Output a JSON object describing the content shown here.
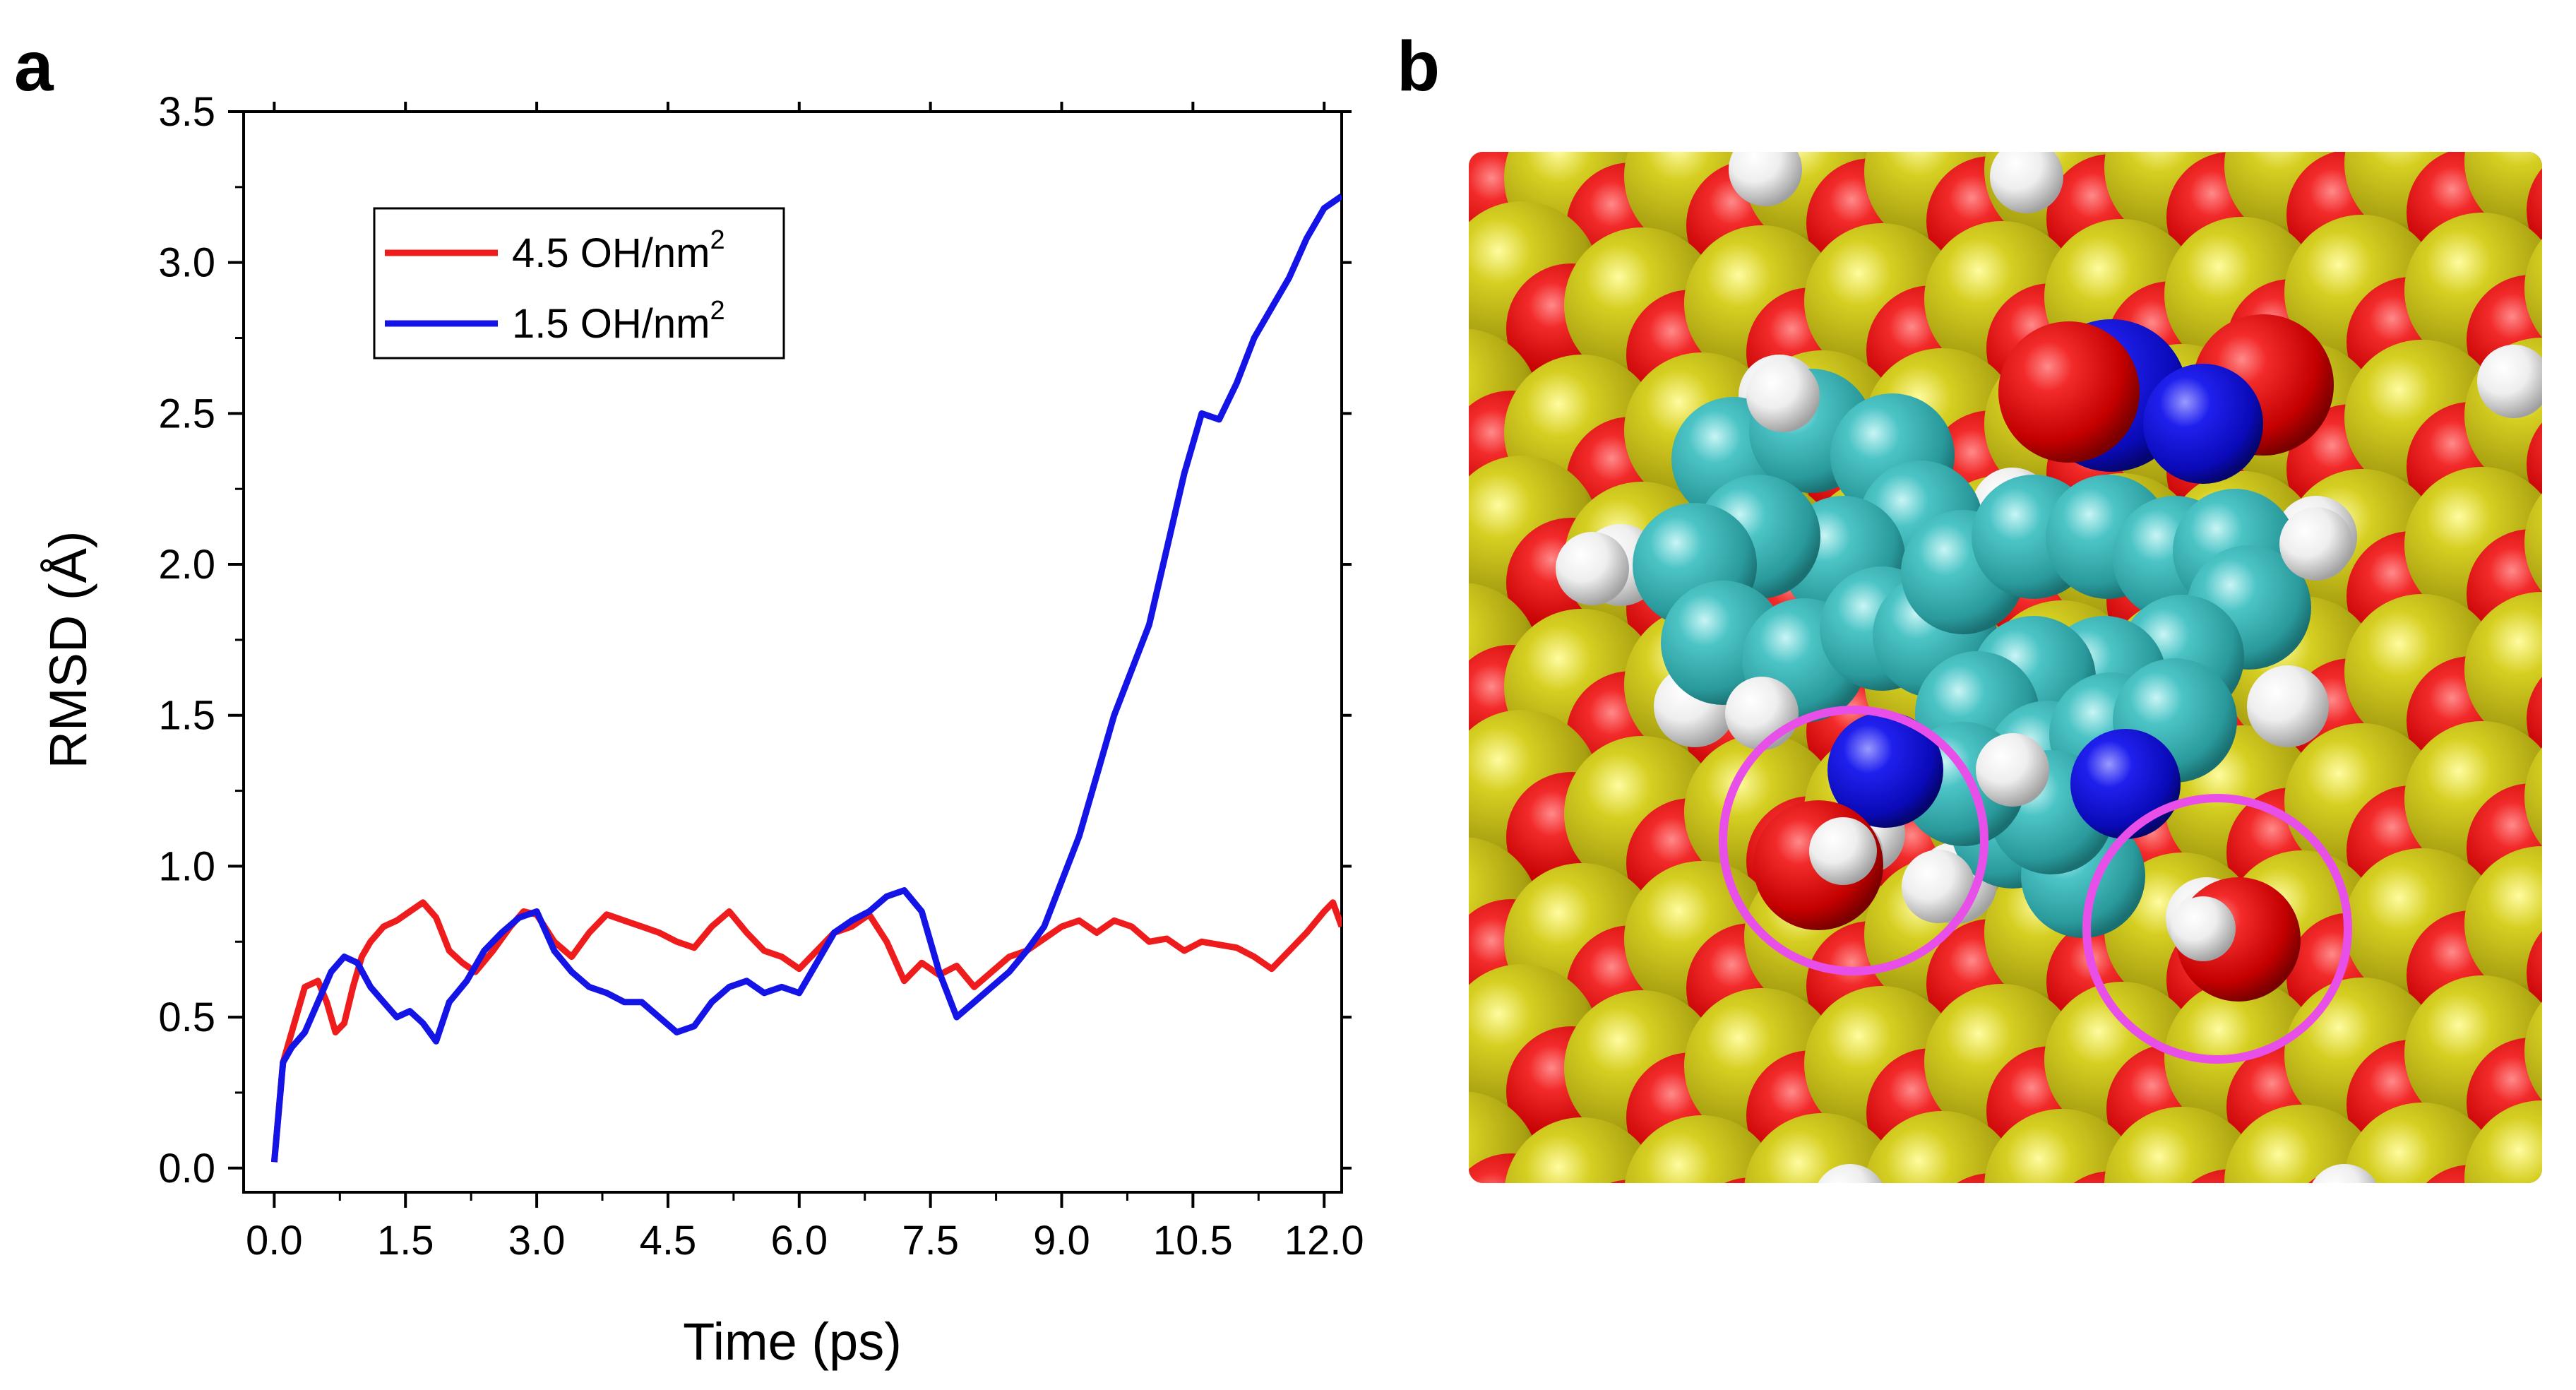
{
  "figure": {
    "panel_a_label": "a",
    "panel_b_label": "b"
  },
  "colors": {
    "series_high": "#ee1c1c",
    "series_low": "#1414e6",
    "oxygen": "#d40000",
    "silicon": "#c8c21a",
    "carbon": "#3fb5b8",
    "nitrogen": "#1010d8",
    "hydrogen": "#f2f2f2",
    "highlight": "#e84fe8"
  },
  "chart_data": {
    "type": "line",
    "title": "",
    "xlabel": "Time (ps)",
    "ylabel": "RMSD (Å)",
    "xlim": [
      -0.35,
      12.2
    ],
    "ylim": [
      -0.08,
      3.5
    ],
    "xticks": [
      "0.0",
      "1.5",
      "3.0",
      "4.5",
      "6.0",
      "7.5",
      "9.0",
      "10.5",
      "12.0"
    ],
    "yticks": [
      "0.0",
      "0.5",
      "1.0",
      "1.5",
      "2.0",
      "2.5",
      "3.0",
      "3.5"
    ],
    "legend_position": "upper-left inside",
    "series": [
      {
        "name": "4.5 OH/nm²",
        "legend_text": "4.5 OH/nm",
        "legend_sup": "2",
        "color": "#ee1c1c",
        "x": [
          0,
          0.1,
          0.2,
          0.35,
          0.5,
          0.6,
          0.7,
          0.8,
          0.9,
          1.0,
          1.1,
          1.25,
          1.4,
          1.55,
          1.7,
          1.85,
          2.0,
          2.15,
          2.3,
          2.5,
          2.7,
          2.85,
          3.0,
          3.2,
          3.4,
          3.6,
          3.8,
          4.0,
          4.2,
          4.4,
          4.6,
          4.8,
          5.0,
          5.2,
          5.4,
          5.6,
          5.8,
          6.0,
          6.2,
          6.4,
          6.6,
          6.8,
          7.0,
          7.2,
          7.4,
          7.6,
          7.8,
          8.0,
          8.2,
          8.4,
          8.6,
          8.8,
          9.0,
          9.2,
          9.4,
          9.6,
          9.8,
          10.0,
          10.2,
          10.4,
          10.6,
          10.8,
          11.0,
          11.2,
          11.4,
          11.6,
          11.8,
          12.0,
          12.1,
          12.2
        ],
        "y": [
          0.02,
          0.35,
          0.45,
          0.6,
          0.62,
          0.55,
          0.45,
          0.48,
          0.6,
          0.7,
          0.75,
          0.8,
          0.82,
          0.85,
          0.88,
          0.83,
          0.72,
          0.68,
          0.65,
          0.72,
          0.8,
          0.85,
          0.84,
          0.75,
          0.7,
          0.78,
          0.84,
          0.82,
          0.8,
          0.78,
          0.75,
          0.73,
          0.8,
          0.85,
          0.78,
          0.72,
          0.7,
          0.66,
          0.72,
          0.78,
          0.8,
          0.84,
          0.75,
          0.62,
          0.68,
          0.64,
          0.67,
          0.6,
          0.65,
          0.7,
          0.72,
          0.76,
          0.8,
          0.82,
          0.78,
          0.82,
          0.8,
          0.75,
          0.76,
          0.72,
          0.75,
          0.74,
          0.73,
          0.7,
          0.66,
          0.72,
          0.78,
          0.85,
          0.88,
          0.8
        ]
      },
      {
        "name": "1.5 OH/nm²",
        "legend_text": "1.5 OH/nm",
        "legend_sup": "2",
        "color": "#1414e6",
        "x": [
          0,
          0.1,
          0.2,
          0.35,
          0.5,
          0.65,
          0.8,
          0.95,
          1.1,
          1.25,
          1.4,
          1.55,
          1.7,
          1.85,
          2.0,
          2.2,
          2.4,
          2.6,
          2.8,
          3.0,
          3.2,
          3.4,
          3.6,
          3.8,
          4.0,
          4.2,
          4.4,
          4.6,
          4.8,
          5.0,
          5.2,
          5.4,
          5.6,
          5.8,
          6.0,
          6.2,
          6.4,
          6.6,
          6.8,
          7.0,
          7.2,
          7.4,
          7.6,
          7.8,
          8.0,
          8.2,
          8.4,
          8.6,
          8.8,
          9.0,
          9.2,
          9.4,
          9.6,
          9.8,
          10.0,
          10.2,
          10.4,
          10.6,
          10.8,
          11.0,
          11.2,
          11.4,
          11.6,
          11.8,
          12.0,
          12.2
        ],
        "y": [
          0.02,
          0.35,
          0.4,
          0.45,
          0.55,
          0.65,
          0.7,
          0.68,
          0.6,
          0.55,
          0.5,
          0.52,
          0.48,
          0.42,
          0.55,
          0.62,
          0.72,
          0.78,
          0.83,
          0.85,
          0.72,
          0.65,
          0.6,
          0.58,
          0.55,
          0.55,
          0.5,
          0.45,
          0.47,
          0.55,
          0.6,
          0.62,
          0.58,
          0.6,
          0.58,
          0.68,
          0.78,
          0.82,
          0.85,
          0.9,
          0.92,
          0.85,
          0.65,
          0.5,
          0.55,
          0.6,
          0.65,
          0.72,
          0.8,
          0.95,
          1.1,
          1.3,
          1.5,
          1.65,
          1.8,
          2.05,
          2.3,
          2.5,
          2.48,
          2.6,
          2.75,
          2.85,
          2.95,
          3.08,
          3.18,
          3.22
        ]
      }
    ]
  },
  "image_b": {
    "description_name": "space-filling molecular model on silica surface",
    "highlight_count": 2
  }
}
